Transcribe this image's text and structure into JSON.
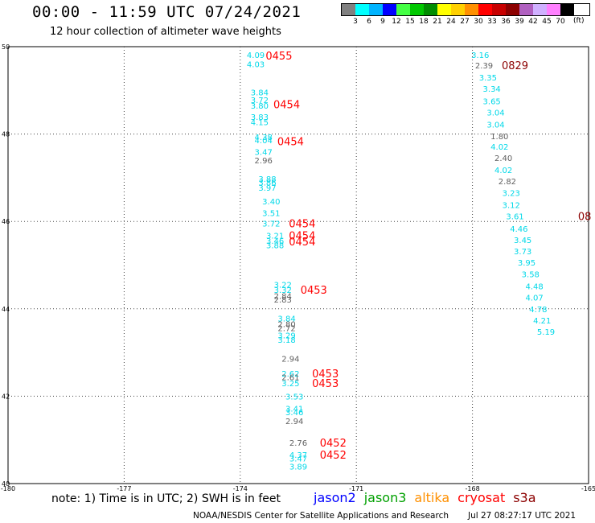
{
  "header": {
    "title": "00:00 - 11:59 UTC 07/24/2021",
    "subtitle": "12 hour collection of altimeter wave heights"
  },
  "scale": {
    "unit": "(ft)",
    "swatches": [
      {
        "color": "#808080",
        "label": "3"
      },
      {
        "color": "#00ffff",
        "label": "6"
      },
      {
        "color": "#00b4ff",
        "label": "9"
      },
      {
        "color": "#0000ff",
        "label": "12"
      },
      {
        "color": "#44ff44",
        "label": "15"
      },
      {
        "color": "#00c800",
        "label": "18"
      },
      {
        "color": "#008c00",
        "label": "21"
      },
      {
        "color": "#ffff00",
        "label": "24"
      },
      {
        "color": "#ffd000",
        "label": "27"
      },
      {
        "color": "#ff9000",
        "label": "30"
      },
      {
        "color": "#ff0000",
        "label": "33"
      },
      {
        "color": "#c80000",
        "label": "36"
      },
      {
        "color": "#8c0000",
        "label": "39"
      },
      {
        "color": "#b060c0",
        "label": "42"
      },
      {
        "color": "#d0b0ff",
        "label": "45"
      },
      {
        "color": "#ff80ff",
        "label": "70"
      },
      {
        "color": "#000000",
        "label": ""
      }
    ]
  },
  "footer": {
    "note": "note: 1) Time is in UTC; 2) SWH is in feet",
    "satellites": [
      {
        "name": "jason2",
        "color": "#0000ff"
      },
      {
        "name": "jason3",
        "color": "#00a000"
      },
      {
        "name": "altika",
        "color": "#ff9000"
      },
      {
        "name": "cryosat",
        "color": "#ff0000"
      },
      {
        "name": "s3a",
        "color": "#8c0000"
      }
    ],
    "credit": "NOAA/NESDIS Center for Satellite Applications and Research",
    "timestamp": "Jul 27 08:27:17 UTC 2021"
  },
  "chart_data": {
    "type": "scatter",
    "xlim": [
      -180,
      -165
    ],
    "ylim": [
      40,
      50
    ],
    "x_ticks": [
      "-180",
      "-177",
      "-174",
      "-171",
      "-168",
      "-165"
    ],
    "y_ticks": [
      "40",
      "42",
      "44",
      "46",
      "48",
      "50"
    ],
    "grid": true,
    "colors": {
      "gray": "#606060",
      "cyan": "#00d8e8"
    },
    "points": [
      {
        "lon": -173.6,
        "lat": 49.82,
        "v": "4.09",
        "c": "cyan"
      },
      {
        "lon": -173.6,
        "lat": 49.6,
        "v": "4.03",
        "c": "cyan"
      },
      {
        "lon": -173.5,
        "lat": 48.96,
        "v": "3.84",
        "c": "cyan"
      },
      {
        "lon": -173.5,
        "lat": 48.78,
        "v": "3.72",
        "c": "cyan"
      },
      {
        "lon": -173.5,
        "lat": 48.66,
        "v": "3.80",
        "c": "cyan"
      },
      {
        "lon": -173.5,
        "lat": 48.4,
        "v": "3.83",
        "c": "cyan"
      },
      {
        "lon": -173.5,
        "lat": 48.28,
        "v": "4.15",
        "c": "cyan"
      },
      {
        "lon": -173.4,
        "lat": 47.94,
        "v": "4.38",
        "c": "cyan"
      },
      {
        "lon": -173.4,
        "lat": 47.86,
        "v": "4.04",
        "c": "cyan"
      },
      {
        "lon": -173.4,
        "lat": 47.6,
        "v": "3.47",
        "c": "cyan"
      },
      {
        "lon": -173.4,
        "lat": 47.4,
        "v": "2.96",
        "c": "gray"
      },
      {
        "lon": -173.3,
        "lat": 46.98,
        "v": "3.88",
        "c": "cyan"
      },
      {
        "lon": -173.3,
        "lat": 46.9,
        "v": "3.86",
        "c": "cyan"
      },
      {
        "lon": -173.3,
        "lat": 46.78,
        "v": "3.97",
        "c": "cyan"
      },
      {
        "lon": -173.2,
        "lat": 46.46,
        "v": "3.40",
        "c": "cyan"
      },
      {
        "lon": -173.2,
        "lat": 46.2,
        "v": "3.51",
        "c": "cyan"
      },
      {
        "lon": -173.2,
        "lat": 45.96,
        "v": "3.72",
        "c": "cyan"
      },
      {
        "lon": -173.1,
        "lat": 45.68,
        "v": "3.21",
        "c": "cyan"
      },
      {
        "lon": -173.1,
        "lat": 45.56,
        "v": "3.46",
        "c": "cyan"
      },
      {
        "lon": -173.1,
        "lat": 45.46,
        "v": "3.88",
        "c": "cyan"
      },
      {
        "lon": -172.9,
        "lat": 44.56,
        "v": "3.22",
        "c": "cyan"
      },
      {
        "lon": -172.9,
        "lat": 44.44,
        "v": "3.32",
        "c": "cyan"
      },
      {
        "lon": -172.9,
        "lat": 44.3,
        "v": "2.84",
        "c": "gray"
      },
      {
        "lon": -172.9,
        "lat": 44.22,
        "v": "2.83",
        "c": "gray"
      },
      {
        "lon": -172.8,
        "lat": 43.78,
        "v": "3.84",
        "c": "cyan"
      },
      {
        "lon": -172.8,
        "lat": 43.66,
        "v": "2.80",
        "c": "gray"
      },
      {
        "lon": -172.8,
        "lat": 43.56,
        "v": "2.72",
        "c": "gray"
      },
      {
        "lon": -172.8,
        "lat": 43.4,
        "v": "3.29",
        "c": "cyan"
      },
      {
        "lon": -172.8,
        "lat": 43.3,
        "v": "3.18",
        "c": "cyan"
      },
      {
        "lon": -172.7,
        "lat": 42.86,
        "v": "2.94",
        "c": "gray"
      },
      {
        "lon": -172.7,
        "lat": 42.52,
        "v": "2.62",
        "c": "cyan"
      },
      {
        "lon": -172.7,
        "lat": 42.44,
        "v": "2.61",
        "c": "gray"
      },
      {
        "lon": -172.7,
        "lat": 42.3,
        "v": "3.25",
        "c": "cyan"
      },
      {
        "lon": -172.6,
        "lat": 42.0,
        "v": "3.53",
        "c": "cyan"
      },
      {
        "lon": -172.6,
        "lat": 41.72,
        "v": "3.41",
        "c": "cyan"
      },
      {
        "lon": -172.6,
        "lat": 41.64,
        "v": "3.46",
        "c": "cyan"
      },
      {
        "lon": -172.6,
        "lat": 41.44,
        "v": "2.94",
        "c": "gray"
      },
      {
        "lon": -172.5,
        "lat": 40.94,
        "v": "2.76",
        "c": "gray"
      },
      {
        "lon": -172.5,
        "lat": 40.66,
        "v": "4.37",
        "c": "cyan"
      },
      {
        "lon": -172.5,
        "lat": 40.58,
        "v": "3.47",
        "c": "cyan"
      },
      {
        "lon": -172.5,
        "lat": 40.4,
        "v": "3.89",
        "c": "cyan"
      },
      {
        "lon": -167.8,
        "lat": 49.82,
        "v": "3.16",
        "c": "cyan"
      },
      {
        "lon": -167.7,
        "lat": 49.58,
        "v": "2.39",
        "c": "gray"
      },
      {
        "lon": -167.6,
        "lat": 49.3,
        "v": "3.35",
        "c": "cyan"
      },
      {
        "lon": -167.5,
        "lat": 49.04,
        "v": "3.34",
        "c": "cyan"
      },
      {
        "lon": -167.5,
        "lat": 48.76,
        "v": "3.65",
        "c": "cyan"
      },
      {
        "lon": -167.4,
        "lat": 48.5,
        "v": "3.04",
        "c": "cyan"
      },
      {
        "lon": -167.4,
        "lat": 48.22,
        "v": "3.04",
        "c": "cyan"
      },
      {
        "lon": -167.3,
        "lat": 47.96,
        "v": "1.80",
        "c": "gray"
      },
      {
        "lon": -167.3,
        "lat": 47.72,
        "v": "4.02",
        "c": "cyan"
      },
      {
        "lon": -167.2,
        "lat": 47.46,
        "v": "2.40",
        "c": "gray"
      },
      {
        "lon": -167.2,
        "lat": 47.18,
        "v": "4.02",
        "c": "cyan"
      },
      {
        "lon": -167.1,
        "lat": 46.92,
        "v": "2.82",
        "c": "gray"
      },
      {
        "lon": -167.0,
        "lat": 46.66,
        "v": "3.23",
        "c": "cyan"
      },
      {
        "lon": -167.0,
        "lat": 46.38,
        "v": "3.12",
        "c": "cyan"
      },
      {
        "lon": -166.9,
        "lat": 46.12,
        "v": "3.61",
        "c": "cyan"
      },
      {
        "lon": -166.8,
        "lat": 45.84,
        "v": "4.46",
        "c": "cyan"
      },
      {
        "lon": -166.7,
        "lat": 45.58,
        "v": "3.45",
        "c": "cyan"
      },
      {
        "lon": -166.7,
        "lat": 45.32,
        "v": "3.73",
        "c": "cyan"
      },
      {
        "lon": -166.6,
        "lat": 45.06,
        "v": "3.95",
        "c": "cyan"
      },
      {
        "lon": -166.5,
        "lat": 44.8,
        "v": "3.58",
        "c": "cyan"
      },
      {
        "lon": -166.4,
        "lat": 44.52,
        "v": "4.48",
        "c": "cyan"
      },
      {
        "lon": -166.4,
        "lat": 44.26,
        "v": "4.07",
        "c": "cyan"
      },
      {
        "lon": -166.3,
        "lat": 44.0,
        "v": "4.78",
        "c": "cyan"
      },
      {
        "lon": -166.2,
        "lat": 43.74,
        "v": "4.21",
        "c": "cyan"
      },
      {
        "lon": -166.1,
        "lat": 43.48,
        "v": "5.19",
        "c": "cyan"
      }
    ],
    "time_labels": [
      {
        "lon": -173.0,
        "lat": 49.8,
        "v": "0455",
        "color": "#ff0000"
      },
      {
        "lon": -172.8,
        "lat": 48.68,
        "v": "0454",
        "color": "#ff0000"
      },
      {
        "lon": -172.7,
        "lat": 47.84,
        "v": "0454",
        "color": "#ff0000"
      },
      {
        "lon": -172.4,
        "lat": 45.96,
        "v": "0454",
        "color": "#ff0000"
      },
      {
        "lon": -172.4,
        "lat": 45.68,
        "v": "0454",
        "color": "#ff0000"
      },
      {
        "lon": -172.4,
        "lat": 45.54,
        "v": "0454",
        "color": "#ff0000"
      },
      {
        "lon": -172.1,
        "lat": 44.44,
        "v": "0453",
        "color": "#ff0000"
      },
      {
        "lon": -171.8,
        "lat": 42.52,
        "v": "0453",
        "color": "#ff0000"
      },
      {
        "lon": -171.8,
        "lat": 42.3,
        "v": "0453",
        "color": "#ff0000"
      },
      {
        "lon": -171.6,
        "lat": 40.94,
        "v": "0452",
        "color": "#ff0000"
      },
      {
        "lon": -171.6,
        "lat": 40.66,
        "v": "0452",
        "color": "#ff0000"
      },
      {
        "lon": -166.9,
        "lat": 49.58,
        "v": "0829",
        "color": "#8c0000"
      },
      {
        "lon": -165.1,
        "lat": 46.12,
        "v": "08",
        "color": "#8c0000"
      }
    ]
  }
}
